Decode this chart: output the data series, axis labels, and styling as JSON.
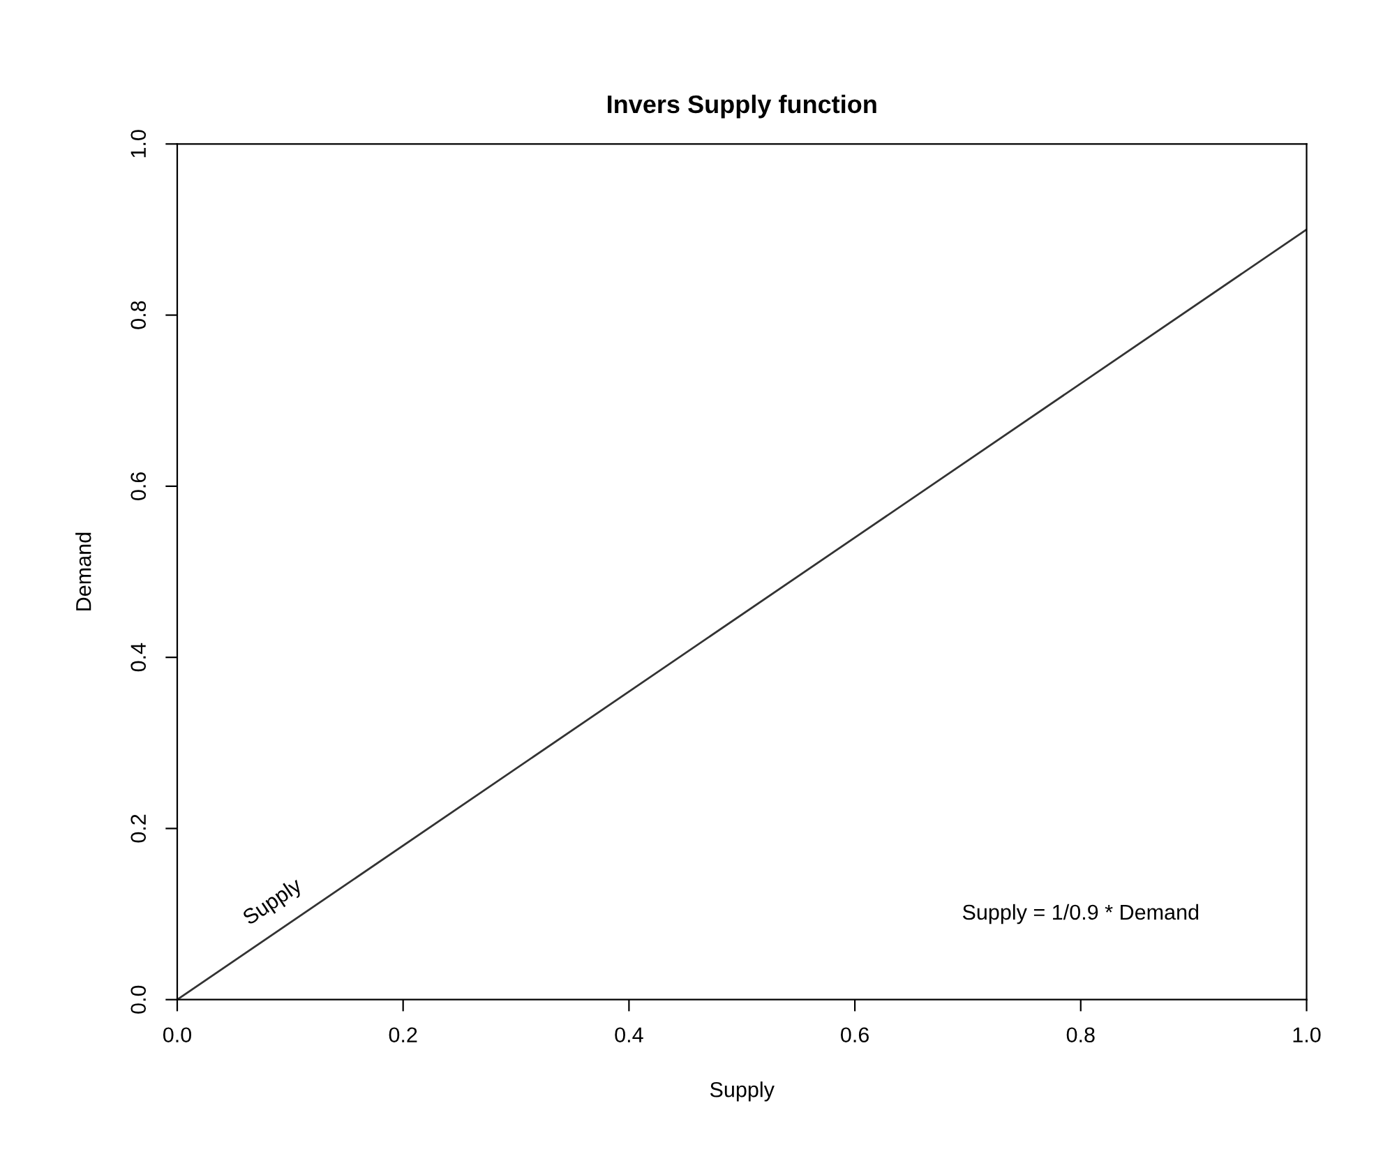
{
  "chart_data": {
    "type": "line",
    "title": "Invers Supply function",
    "xlabel": "Supply",
    "ylabel": "Demand",
    "x": [
      0,
      1
    ],
    "series": [
      {
        "name": "Supply",
        "color": "#333333",
        "values": [
          0,
          0.9
        ]
      }
    ],
    "xlim": [
      0,
      1
    ],
    "ylim": [
      0,
      1
    ],
    "xticks": [
      {
        "value": 0,
        "label": "0.0"
      },
      {
        "value": 0.2,
        "label": "0.2"
      },
      {
        "value": 0.4,
        "label": "0.4"
      },
      {
        "value": 0.6,
        "label": "0.6"
      },
      {
        "value": 0.8,
        "label": "0.8"
      },
      {
        "value": 1,
        "label": "1.0"
      }
    ],
    "yticks": [
      {
        "value": 0,
        "label": "0.0"
      },
      {
        "value": 0.2,
        "label": "0.2"
      },
      {
        "value": 0.4,
        "label": "0.4"
      },
      {
        "value": 0.6,
        "label": "0.6"
      },
      {
        "value": 0.8,
        "label": "0.8"
      },
      {
        "value": 1,
        "label": "1.0"
      }
    ],
    "annotations": [
      "Supply = 1/0.9 * Demand"
    ],
    "grid": false,
    "legend": false,
    "marker": "none",
    "line_style": "solid"
  }
}
